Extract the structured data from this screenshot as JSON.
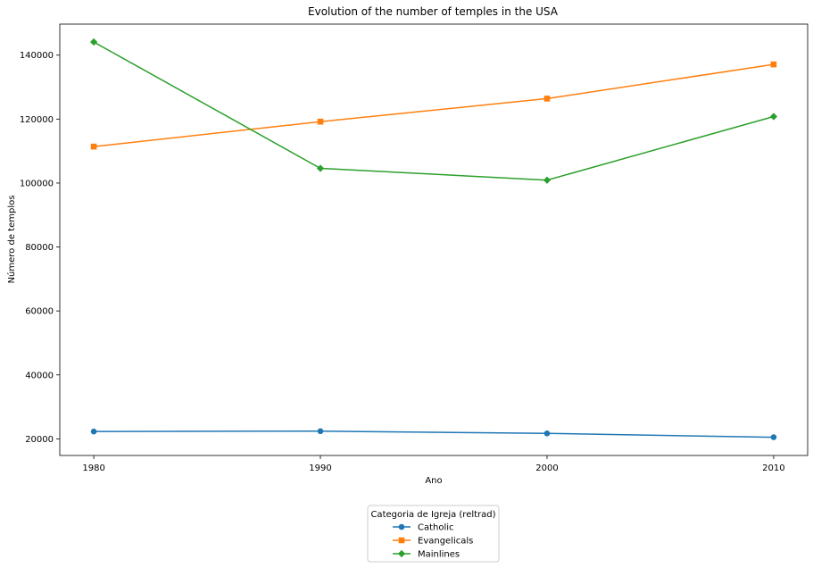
{
  "chart_data": {
    "type": "line",
    "title": "Evolution of the number of temples in the USA",
    "xlabel": "Ano",
    "ylabel": "Número de templos",
    "categories": [
      "1980",
      "1990",
      "2000",
      "2010"
    ],
    "x": [
      1980,
      1990,
      2000,
      2010
    ],
    "xlim": [
      1978.5,
      2011.5
    ],
    "ylim": [
      14800,
      149700
    ],
    "yticks": [
      20000,
      40000,
      60000,
      80000,
      100000,
      120000,
      140000
    ],
    "ytick_labels": [
      "20000",
      "40000",
      "60000",
      "80000",
      "100000",
      "120000",
      "140000"
    ],
    "grid": false,
    "legend": {
      "title": "Categoria de Igreja (reltrad)",
      "placement": "below-center",
      "entries": [
        "Catholic",
        "Evangelicals",
        "Mainlines"
      ]
    },
    "series": [
      {
        "name": "Catholic",
        "color": "#1f77b4",
        "marker": "circle",
        "values": [
          22300,
          22400,
          21700,
          20500
        ]
      },
      {
        "name": "Evangelicals",
        "color": "#ff7f0e",
        "marker": "square",
        "values": [
          111400,
          119200,
          126400,
          137100
        ]
      },
      {
        "name": "Mainlines",
        "color": "#2ca02c",
        "marker": "diamond",
        "values": [
          144100,
          104600,
          100900,
          120800
        ]
      }
    ]
  }
}
